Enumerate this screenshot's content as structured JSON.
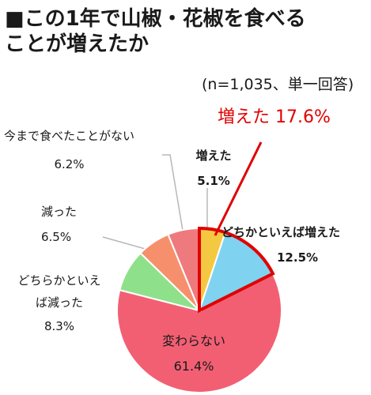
{
  "header": {
    "title_line1": "■この1年で山椒・花椒を食べる",
    "title_line2": "ことが増えたか",
    "note": "(n=1,035、単一回答)",
    "highlight_label": "増えた 17.6%"
  },
  "colors": {
    "slice_zoueta": "#f5c842",
    "slice_dochiraka_zoueta": "#7fd3f0",
    "slice_kawaranai": "#f25f73",
    "slice_dochiraka_hetta": "#8fe08a",
    "slice_hetta": "#f6906c",
    "slice_nai": "#ee7a7e",
    "highlight": "#e00000",
    "leader": "#b8b8b8"
  },
  "chart_data": {
    "type": "pie",
    "title": "この1年で山椒・花椒を食べることが増えたか",
    "note": "(n=1,035、単一回答)",
    "slices": [
      {
        "label": "増えた",
        "value": 5.1,
        "display": "5.1%",
        "color": "#f5c842"
      },
      {
        "label": "どちらかといえば増えた",
        "value": 12.5,
        "display": "12.5%",
        "color": "#7fd3f0"
      },
      {
        "label": "変わらない",
        "value": 61.4,
        "display": "61.4%",
        "color": "#f25f73"
      },
      {
        "label": "どちらかといえば減った",
        "value": 8.3,
        "display": "8.3%",
        "color": "#8fe08a"
      },
      {
        "label": "減った",
        "value": 6.5,
        "display": "6.5%",
        "color": "#f6906c"
      },
      {
        "label": "今まで食べたことがない",
        "value": 6.2,
        "display": "6.2%",
        "color": "#ee7a7e"
      }
    ],
    "highlight": {
      "label": "増えた",
      "value": 17.6,
      "display": "17.6%",
      "slice_indices": [
        0,
        1
      ]
    }
  },
  "labels": {
    "s0_line1": "増えた",
    "s1_line1": "どちかといえば増えた",
    "s2_line1": "変わらない",
    "s3_line1": "どちらかといえ",
    "s3_line2": "ば減った",
    "s4_line1": "減った",
    "s5_line1": "今まで食べたことがない"
  }
}
